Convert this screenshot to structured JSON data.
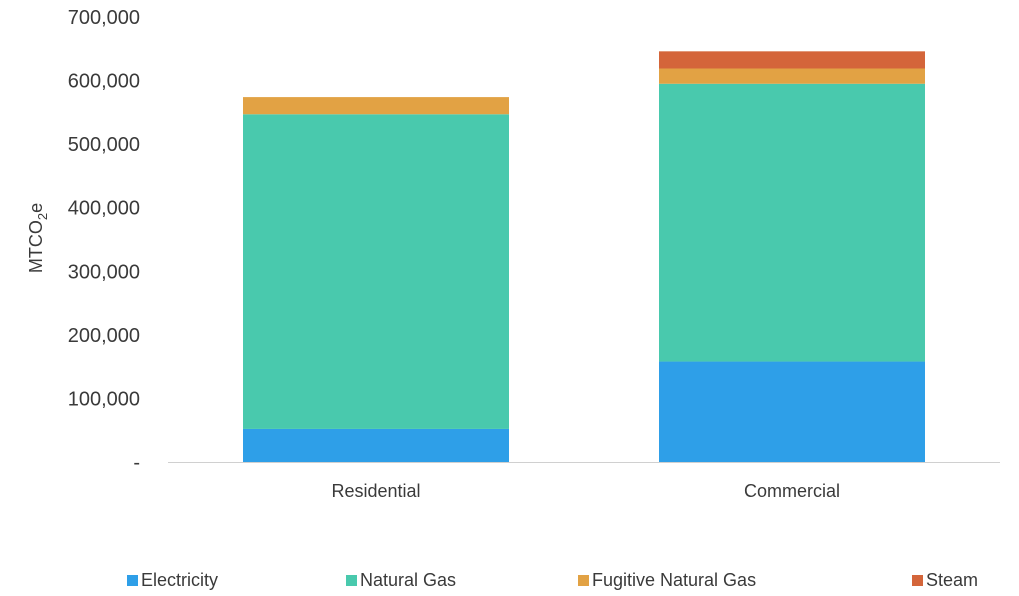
{
  "chart_data": {
    "type": "bar",
    "stacked": true,
    "title": "",
    "xlabel": "",
    "ylabel": "MTCO₂e",
    "ylabel_parts": {
      "main": "MTCO",
      "sub": "2",
      "tail": "e"
    },
    "ylim": [
      0,
      700000
    ],
    "yticks": [
      0,
      100000,
      200000,
      300000,
      400000,
      500000,
      600000,
      700000
    ],
    "ytick_labels": [
      "-",
      "100,000",
      "200,000",
      "300,000",
      "400,000",
      "500,000",
      "600,000",
      "700,000"
    ],
    "categories": [
      "Residential",
      "Commercial"
    ],
    "series": [
      {
        "name": "Electricity",
        "color": "#2e9fe8",
        "values": [
          52000,
          158000
        ]
      },
      {
        "name": "Natural Gas",
        "color": "#49c9ad",
        "values": [
          495000,
          437000
        ]
      },
      {
        "name": "Fugitive Natural Gas",
        "color": "#e2a244",
        "values": [
          27000,
          24000
        ]
      },
      {
        "name": "Steam",
        "color": "#d4653a",
        "values": [
          0,
          27000
        ]
      }
    ],
    "grid": false,
    "legend_position": "bottom"
  }
}
